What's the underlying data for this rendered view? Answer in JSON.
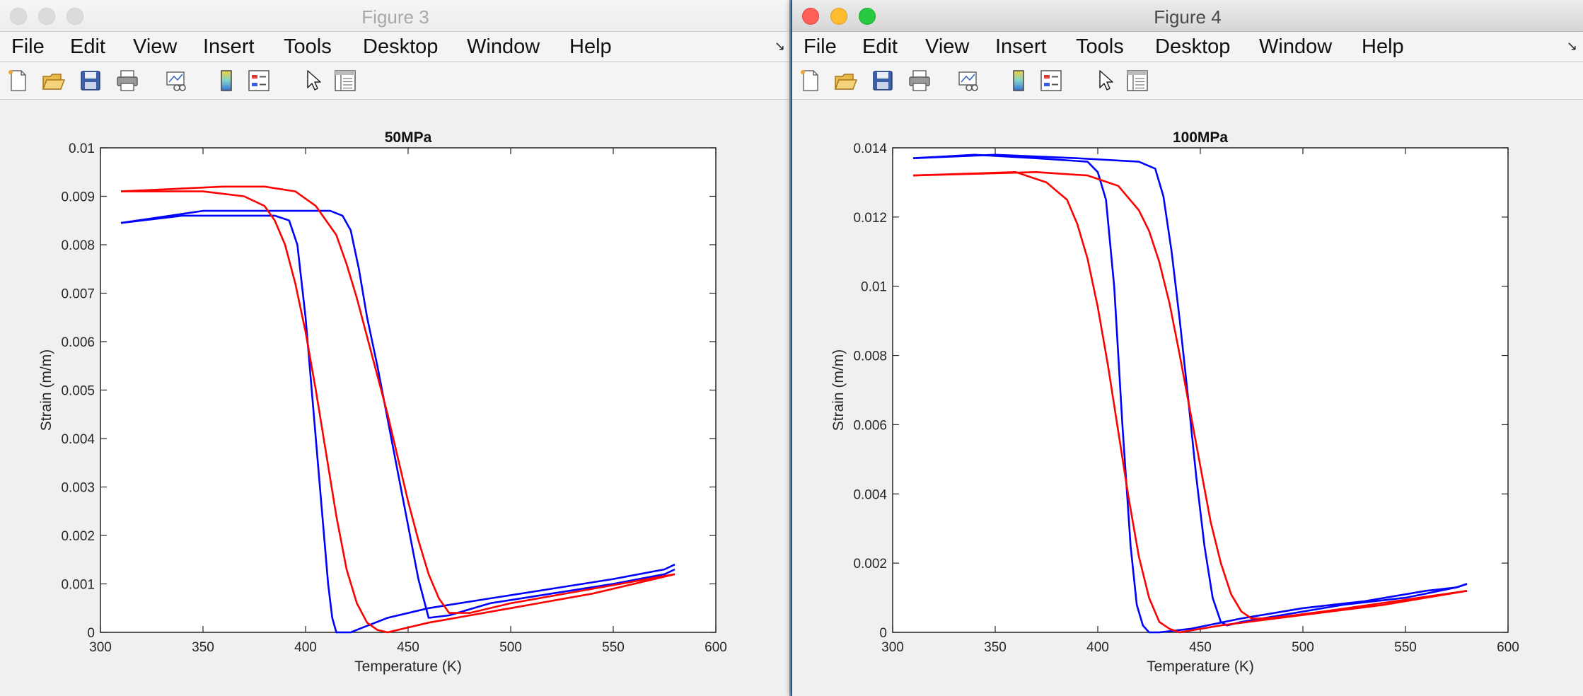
{
  "figures": [
    {
      "id": "win3",
      "window_title": "Figure 3",
      "active": false,
      "menu": [
        "File",
        "Edit",
        "View",
        "Insert",
        "Tools",
        "Desktop",
        "Window",
        "Help"
      ],
      "menu_arrow": "↘",
      "toolbar_icons": [
        "new-figure-icon",
        "open-file-icon",
        "save-icon",
        "print-icon",
        "link-plot-icon",
        "insert-colorbar-icon",
        "insert-legend-icon",
        "edit-plot-arrow-icon",
        "property-inspector-icon"
      ],
      "chart_data": {
        "type": "line",
        "title": "50MPa",
        "xlabel": "Temperature (K)",
        "ylabel": "Strain (m/m)",
        "xlim": [
          300,
          600
        ],
        "ylim": [
          0,
          0.01
        ],
        "xticks": [
          300,
          350,
          400,
          450,
          500,
          550,
          600
        ],
        "yticks": [
          0,
          0.001,
          0.002,
          0.003,
          0.004,
          0.005,
          0.006,
          0.007,
          0.008,
          0.009,
          0.01
        ],
        "ytick_labels": [
          "0",
          "0.001",
          "0.002",
          "0.003",
          "0.004",
          "0.005",
          "0.006",
          "0.007",
          "0.008",
          "0.009",
          "0.01"
        ],
        "grid": false,
        "series": [
          {
            "color": "#0000ff",
            "x": [
              310,
              340,
              370,
              385,
              392,
              396,
              400,
              404,
              408,
              411,
              413,
              415,
              418,
              422,
              428,
              440,
              460,
              490,
              520,
              550,
              575,
              580
            ],
            "y": [
              0.00845,
              0.0086,
              0.0086,
              0.0086,
              0.0085,
              0.008,
              0.0065,
              0.0045,
              0.0025,
              0.001,
              0.0003,
              0.0,
              0.0,
              0.0,
              0.0001,
              0.0003,
              0.0005,
              0.0007,
              0.0009,
              0.0011,
              0.0013,
              0.0014
            ]
          },
          {
            "color": "#0000ff",
            "x": [
              310,
              350,
              380,
              400,
              412,
              418,
              422,
              426,
              430,
              435,
              440,
              445,
              450,
              455,
              460,
              470,
              490,
              520,
              550,
              575,
              580
            ],
            "y": [
              0.00845,
              0.0087,
              0.0087,
              0.0087,
              0.0087,
              0.0086,
              0.0083,
              0.0075,
              0.0065,
              0.0055,
              0.0044,
              0.0033,
              0.0022,
              0.0011,
              0.0003,
              0.00035,
              0.0006,
              0.0008,
              0.001,
              0.0012,
              0.0013
            ]
          },
          {
            "color": "#ff0000",
            "x": [
              310,
              350,
              370,
              380,
              385,
              390,
              395,
              400,
              405,
              410,
              415,
              420,
              425,
              430,
              435,
              440,
              460,
              500,
              540,
              580
            ],
            "y": [
              0.0091,
              0.0091,
              0.009,
              0.0088,
              0.0085,
              0.008,
              0.0072,
              0.0062,
              0.005,
              0.0037,
              0.0024,
              0.0013,
              0.0006,
              0.0002,
              5e-05,
              0.0,
              0.0002,
              0.0005,
              0.0008,
              0.0012
            ]
          },
          {
            "color": "#ff0000",
            "x": [
              310,
              360,
              380,
              395,
              405,
              415,
              420,
              425,
              430,
              435,
              440,
              445,
              450,
              455,
              460,
              465,
              470,
              480,
              500,
              540,
              580
            ],
            "y": [
              0.0091,
              0.0092,
              0.0092,
              0.0091,
              0.0088,
              0.0082,
              0.0076,
              0.0069,
              0.0061,
              0.0053,
              0.0045,
              0.0036,
              0.0027,
              0.0019,
              0.0012,
              0.0007,
              0.0004,
              0.0004,
              0.0006,
              0.0009,
              0.0012
            ]
          }
        ]
      }
    },
    {
      "id": "win4",
      "window_title": "Figure 4",
      "active": true,
      "menu": [
        "File",
        "Edit",
        "View",
        "Insert",
        "Tools",
        "Desktop",
        "Window",
        "Help"
      ],
      "menu_arrow": "↘",
      "toolbar_icons": [
        "new-figure-icon",
        "open-file-icon",
        "save-icon",
        "print-icon",
        "link-plot-icon",
        "insert-colorbar-icon",
        "insert-legend-icon",
        "edit-plot-arrow-icon",
        "property-inspector-icon"
      ],
      "chart_data": {
        "type": "line",
        "title": "100MPa",
        "xlabel": "Temperature (K)",
        "ylabel": "Strain (m/m)",
        "xlim": [
          300,
          600
        ],
        "ylim": [
          0,
          0.014
        ],
        "xticks": [
          300,
          350,
          400,
          450,
          500,
          550,
          600
        ],
        "yticks": [
          0,
          0.002,
          0.004,
          0.006,
          0.008,
          0.01,
          0.012,
          0.014
        ],
        "ytick_labels": [
          "0",
          "0.002",
          "0.004",
          "0.006",
          "0.008",
          "0.01",
          "0.012",
          "0.014"
        ],
        "grid": false,
        "series": [
          {
            "color": "#0000ff",
            "x": [
              310,
              340,
              370,
              395,
              400,
              404,
              408,
              412,
              416,
              419,
              422,
              425,
              430,
              445,
              470,
              500,
              530,
              560,
              575,
              580
            ],
            "y": [
              0.0137,
              0.0138,
              0.0137,
              0.0136,
              0.0133,
              0.0125,
              0.01,
              0.006,
              0.0025,
              0.0008,
              0.0002,
              0.0,
              0.0,
              0.0001,
              0.0004,
              0.0007,
              0.0009,
              0.0012,
              0.0013,
              0.0014
            ]
          },
          {
            "color": "#0000ff",
            "x": [
              310,
              350,
              390,
              420,
              428,
              432,
              436,
              440,
              444,
              448,
              452,
              456,
              460,
              463,
              470,
              490,
              520,
              550,
              575,
              580
            ],
            "y": [
              0.0137,
              0.0138,
              0.0137,
              0.0136,
              0.0134,
              0.0126,
              0.011,
              0.009,
              0.0068,
              0.0045,
              0.0025,
              0.001,
              0.0003,
              0.0002,
              0.0003,
              0.0005,
              0.0008,
              0.001,
              0.0013,
              0.0014
            ]
          },
          {
            "color": "#ff0000",
            "x": [
              310,
              360,
              375,
              385,
              390,
              395,
              400,
              405,
              410,
              415,
              420,
              425,
              430,
              435,
              440,
              460,
              500,
              540,
              580
            ],
            "y": [
              0.0132,
              0.0133,
              0.013,
              0.0125,
              0.0118,
              0.0108,
              0.0094,
              0.0077,
              0.0058,
              0.0039,
              0.0022,
              0.001,
              0.0003,
              0.0001,
              0.0,
              0.0002,
              0.0005,
              0.0008,
              0.0012
            ]
          },
          {
            "color": "#ff0000",
            "x": [
              310,
              370,
              395,
              410,
              420,
              425,
              430,
              435,
              440,
              445,
              450,
              455,
              460,
              465,
              470,
              475,
              480,
              490,
              510,
              545,
              580
            ],
            "y": [
              0.0132,
              0.0133,
              0.0132,
              0.0129,
              0.0122,
              0.0116,
              0.0107,
              0.0095,
              0.008,
              0.0064,
              0.0048,
              0.0032,
              0.002,
              0.0011,
              0.0006,
              0.0004,
              0.0004,
              0.00045,
              0.0006,
              0.0009,
              0.0012
            ]
          }
        ]
      }
    }
  ]
}
